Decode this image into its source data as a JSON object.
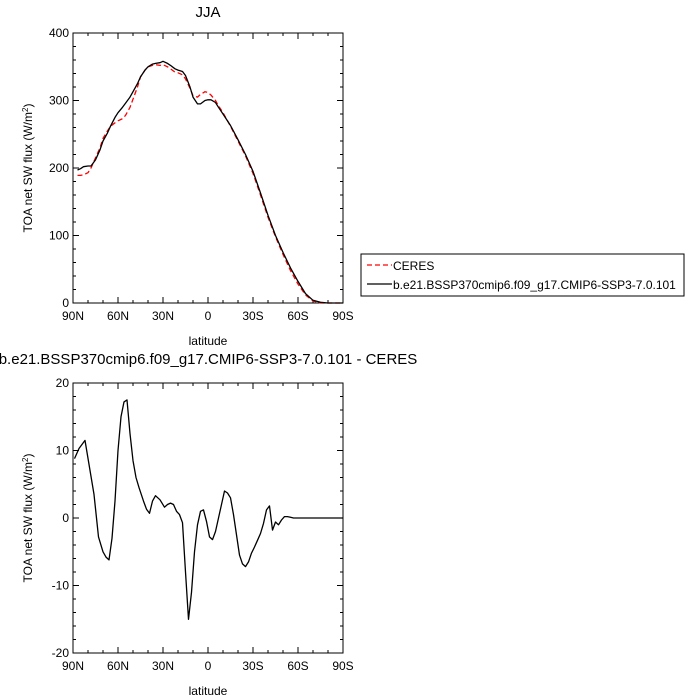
{
  "chart_data": [
    {
      "type": "line",
      "title": "JJA",
      "xlabel": "latitude",
      "ylabel": "TOA net SW flux (W/m",
      "ylabel_sup": "2",
      "ylabel_close": ")",
      "x_ticks": [
        90,
        60,
        30,
        0,
        -30,
        -60,
        -90
      ],
      "x_tick_labels": [
        "90N",
        "60N",
        "30N",
        "0",
        "30S",
        "60S",
        "90S"
      ],
      "xlim": [
        90,
        -90
      ],
      "ylim": [
        0,
        400
      ],
      "y_ticks": [
        0,
        100,
        200,
        300,
        400
      ],
      "y_tick_labels": [
        "0",
        "100",
        "200",
        "300",
        "400"
      ],
      "legend_position": "right",
      "series": [
        {
          "name": "CERES",
          "color": "#ff0000",
          "dash": "dashed",
          "x": [
            87,
            85,
            83,
            80,
            78,
            75,
            72,
            70,
            67,
            65,
            62,
            60,
            57,
            55,
            52,
            50,
            47,
            45,
            42,
            40,
            37,
            35,
            32,
            30,
            27,
            25,
            22,
            20,
            17,
            15,
            12,
            10,
            7,
            5,
            2,
            0,
            -2,
            -5,
            -7,
            -10,
            -15,
            -20,
            -25,
            -30,
            -35,
            -40,
            -45,
            -50,
            -55,
            -60,
            -65,
            -70,
            -75,
            -80,
            -85,
            -90
          ],
          "y": [
            189,
            189,
            190,
            193,
            200,
            215,
            230,
            244,
            255,
            262,
            267,
            270,
            273,
            278,
            290,
            302,
            320,
            335,
            345,
            350,
            352,
            353,
            352,
            353,
            350,
            347,
            342,
            341,
            338,
            332,
            318,
            307,
            305,
            309,
            313,
            312,
            308,
            300,
            292,
            282,
            262,
            240,
            218,
            192,
            160,
            127,
            98,
            72,
            48,
            28,
            12,
            3,
            0,
            0,
            0,
            0
          ]
        },
        {
          "name": "b.e21.BSSP370cmip6.f09_g17.CMIP6-SSP3-7.0.101",
          "color": "#000000",
          "dash": "solid",
          "x": [
            87,
            85,
            83,
            80,
            78,
            75,
            72,
            70,
            67,
            65,
            62,
            60,
            57,
            55,
            52,
            50,
            47,
            45,
            42,
            40,
            37,
            35,
            32,
            30,
            27,
            25,
            22,
            20,
            17,
            15,
            12,
            10,
            7,
            5,
            2,
            0,
            -2,
            -5,
            -7,
            -10,
            -15,
            -20,
            -25,
            -30,
            -35,
            -40,
            -45,
            -50,
            -55,
            -60,
            -65,
            -70,
            -75,
            -80,
            -85,
            -90
          ],
          "y": [
            197,
            199,
            202,
            203,
            203,
            212,
            227,
            240,
            252,
            262,
            275,
            282,
            290,
            296,
            305,
            313,
            325,
            335,
            345,
            350,
            354,
            355,
            356,
            358,
            355,
            352,
            347,
            345,
            343,
            337,
            320,
            305,
            295,
            295,
            300,
            301,
            301,
            297,
            290,
            280,
            263,
            242,
            220,
            195,
            163,
            130,
            100,
            75,
            52,
            32,
            14,
            4,
            1,
            0,
            0,
            0
          ]
        }
      ]
    },
    {
      "type": "line",
      "title": "b.e21.BSSP370cmip6.f09_g17.CMIP6-SSP3-7.0.101 - CERES",
      "xlabel": "latitude",
      "ylabel": "TOA net SW flux (W/m",
      "ylabel_sup": "2",
      "ylabel_close": ")",
      "x_ticks": [
        90,
        60,
        30,
        0,
        -30,
        -60,
        -90
      ],
      "x_tick_labels": [
        "90N",
        "60N",
        "30N",
        "0",
        "30S",
        "60S",
        "90S"
      ],
      "xlim": [
        90,
        -90
      ],
      "ylim": [
        -20,
        20
      ],
      "y_ticks": [
        -20,
        -10,
        0,
        10,
        20
      ],
      "y_tick_labels": [
        "-20",
        "-10",
        "0",
        "10",
        "20"
      ],
      "series": [
        {
          "color": "#000000",
          "dash": "solid",
          "x": [
            89,
            86,
            82,
            79,
            76,
            73,
            70,
            68,
            66,
            64,
            62,
            60,
            58,
            56,
            54,
            52,
            50,
            48,
            46,
            43,
            41,
            39,
            37,
            35,
            32,
            29,
            27,
            25,
            23,
            21,
            19,
            17,
            15,
            13,
            11,
            9,
            7,
            5,
            3,
            1,
            -1,
            -3,
            -5,
            -7,
            -9,
            -11,
            -13,
            -15,
            -17,
            -19,
            -21,
            -23,
            -25,
            -27,
            -29,
            -31,
            -33,
            -35,
            -37,
            -39,
            -41,
            -43,
            -45,
            -47,
            -49,
            -51,
            -53,
            -55,
            -57,
            -59,
            -61,
            -63,
            -65,
            -67,
            -69,
            -71,
            -73,
            -75,
            -78,
            -81,
            -84,
            -87,
            -90
          ],
          "y": [
            8.8,
            10.3,
            11.5,
            7.5,
            3.5,
            -2.8,
            -5.0,
            -5.8,
            -6.2,
            -3.0,
            2.5,
            10.0,
            15.0,
            17.2,
            17.5,
            12.5,
            8.5,
            6.0,
            4.5,
            2.5,
            1.3,
            0.7,
            2.5,
            3.3,
            2.7,
            1.6,
            2.0,
            2.2,
            2.0,
            1.0,
            0.5,
            -0.7,
            -8.0,
            -15.0,
            -11.0,
            -5.0,
            -1.0,
            1.0,
            1.2,
            -0.5,
            -2.8,
            -3.2,
            -2.0,
            0.0,
            2.0,
            4.0,
            3.7,
            3.0,
            0.5,
            -2.5,
            -5.5,
            -6.8,
            -7.2,
            -6.5,
            -5.2,
            -4.3,
            -3.3,
            -2.3,
            -0.8,
            1.2,
            1.8,
            -1.8,
            -0.6,
            -1.0,
            -0.3,
            0.2,
            0.2,
            0.1,
            0.0,
            0.0,
            0.0,
            0.0,
            0.0,
            0.0,
            0.0,
            0.0,
            0.0,
            0.0,
            0.0,
            0.0,
            0.0,
            0.0,
            0.0
          ]
        }
      ]
    }
  ]
}
